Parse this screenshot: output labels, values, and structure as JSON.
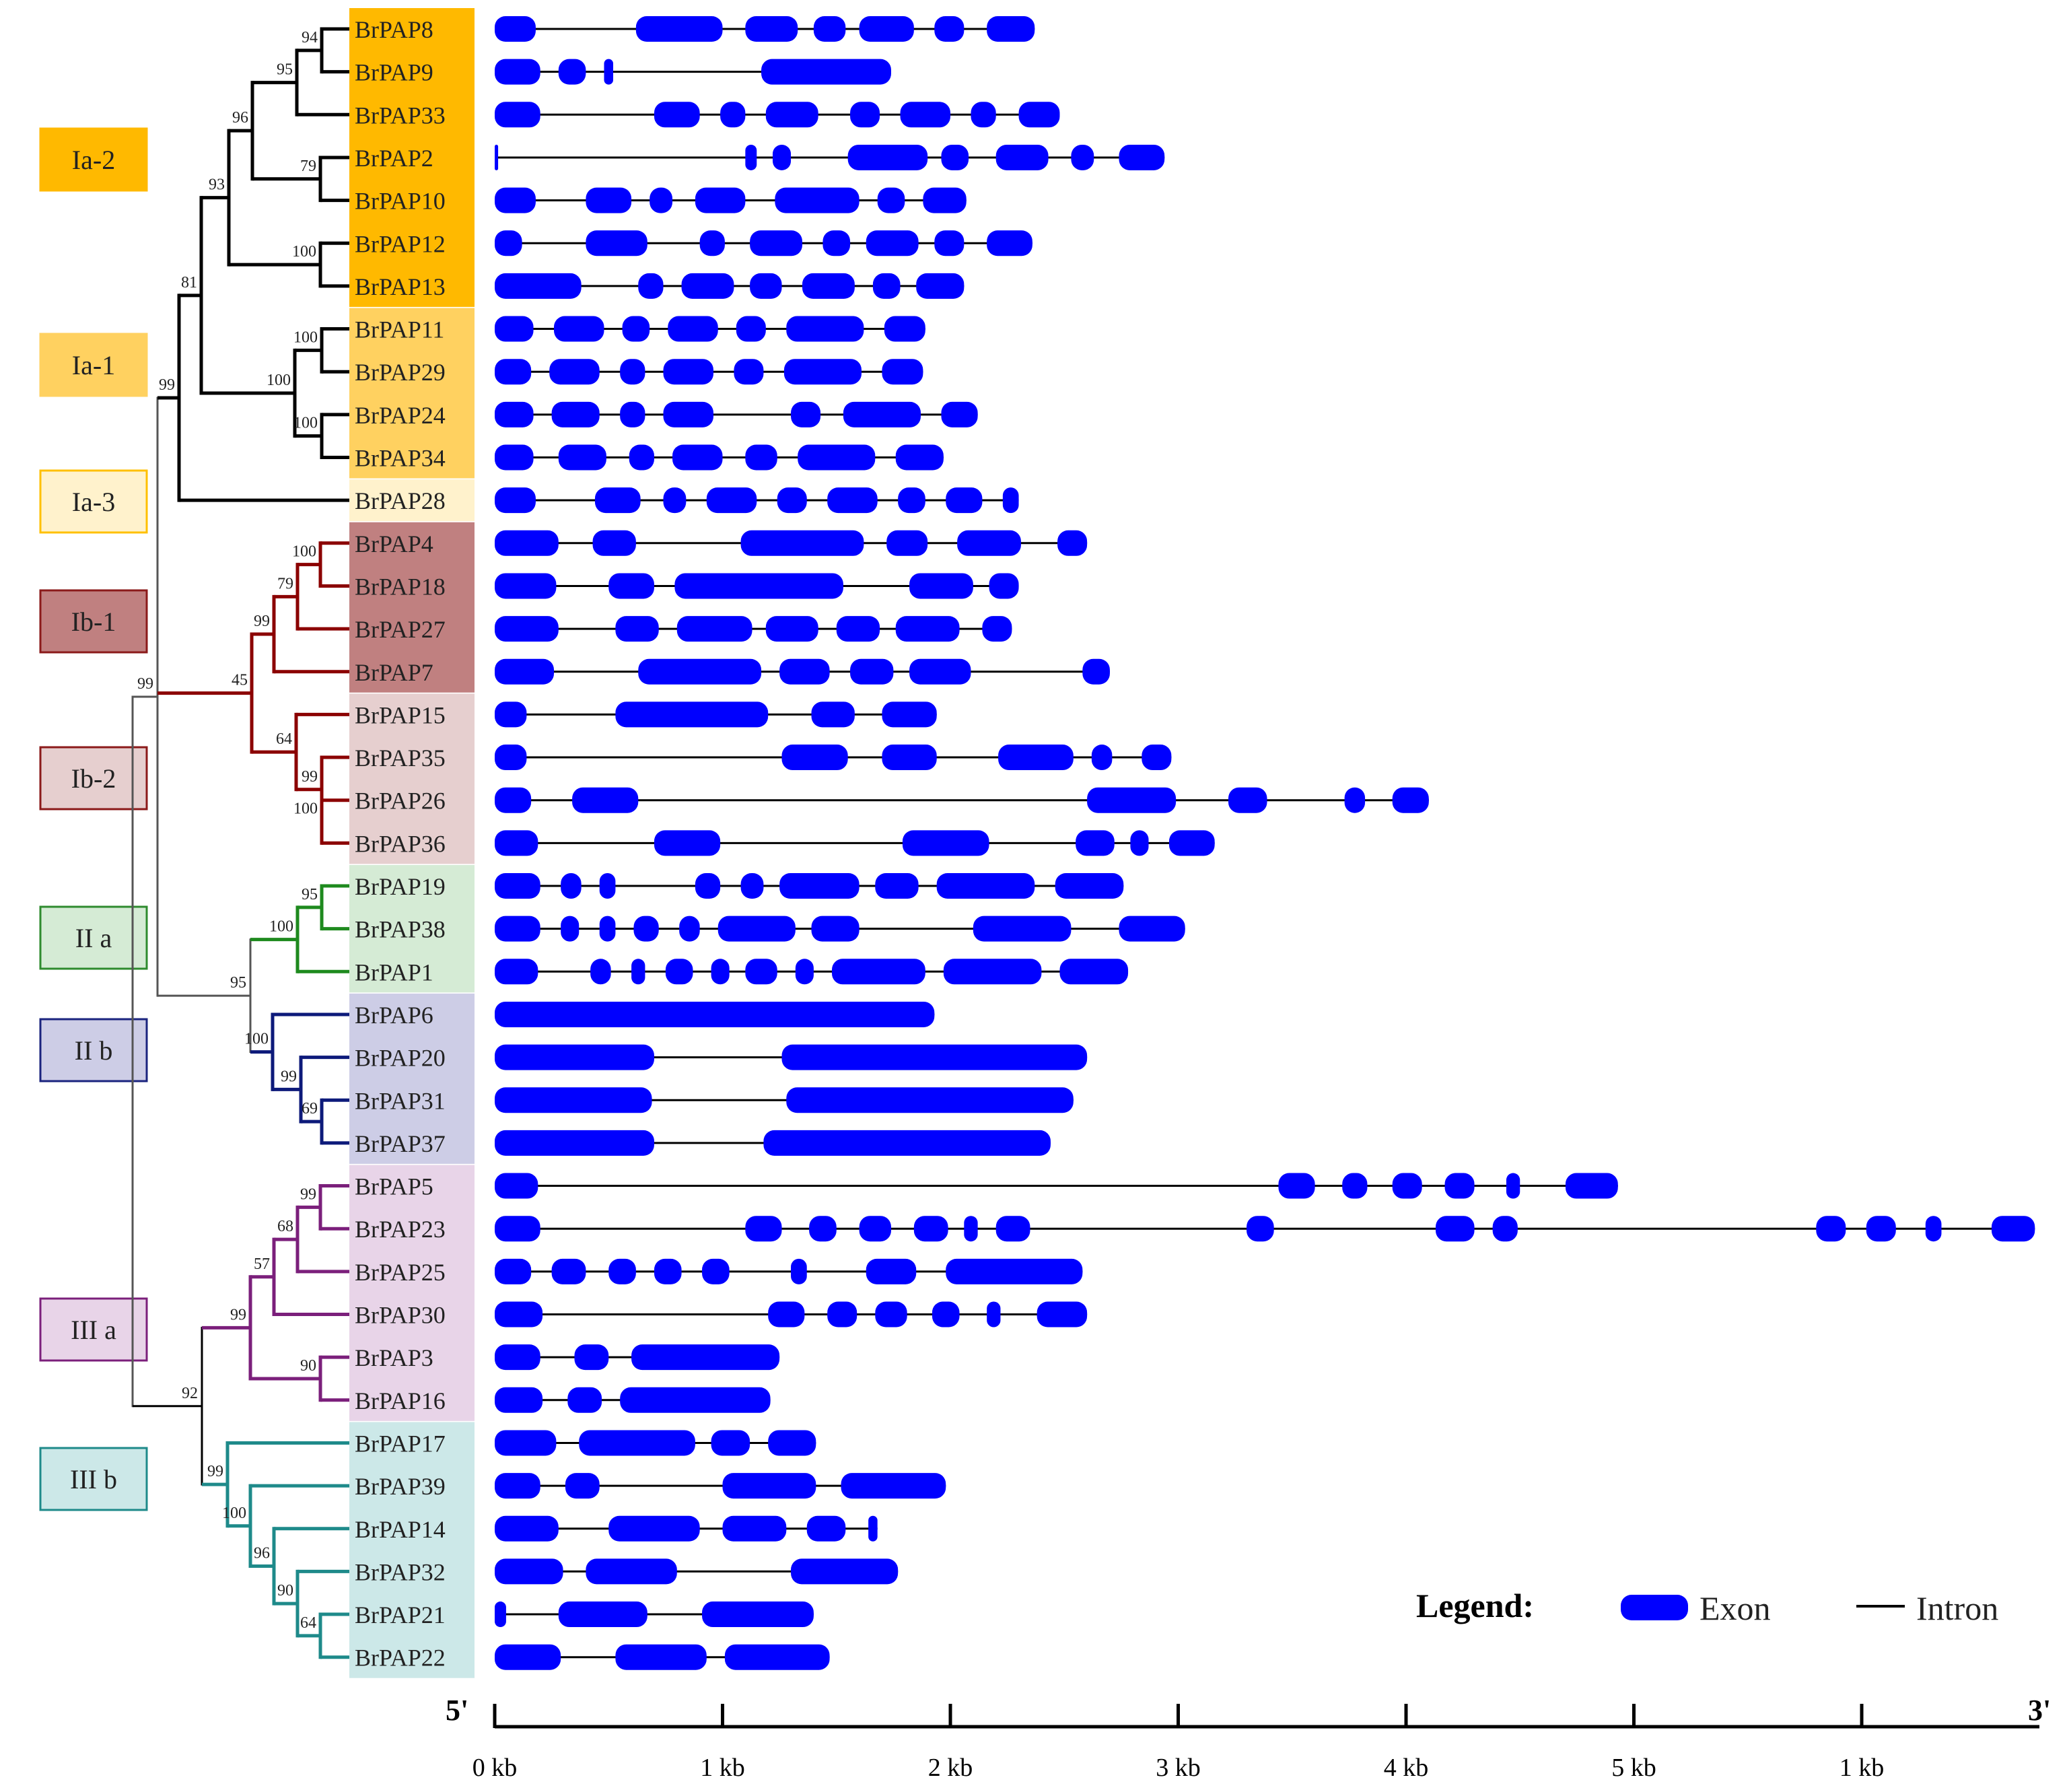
{
  "groups": [
    {
      "label": "Ia-2",
      "color": "#FFB900",
      "bg": "#FFB900",
      "genes": [
        "BrPAP8",
        "BrPAP9",
        "BrPAP33",
        "BrPAP2",
        "BrPAP10",
        "BrPAP12",
        "BrPAP13"
      ]
    },
    {
      "label": "Ia-1",
      "color": "#FFD160",
      "bg": "#FFD160",
      "genes": [
        "BrPAP11",
        "BrPAP29",
        "BrPAP24",
        "BrPAP34"
      ]
    },
    {
      "label": "Ia-3",
      "color": "#FFF2CC",
      "border": "#FFC000",
      "bg": "#FFF2CC",
      "genes": [
        "BrPAP28"
      ]
    },
    {
      "label": "Ib-1",
      "color": "#C08080",
      "border": "#8B1A1A",
      "bg": "#C08080",
      "genes": [
        "BrPAP4",
        "BrPAP18",
        "BrPAP27",
        "BrPAP7"
      ]
    },
    {
      "label": "Ib-2",
      "color": "#E6CFCF",
      "border": "#8B1A1A",
      "bg": "#E6CFCF",
      "genes": [
        "BrPAP15",
        "BrPAP35",
        "BrPAP26",
        "BrPAP36"
      ]
    },
    {
      "label": "II a",
      "color": "#D5EBD5",
      "border": "#2E8B2E",
      "bg": "#D5EBD5",
      "genes": [
        "BrPAP19",
        "BrPAP38",
        "BrPAP1"
      ]
    },
    {
      "label": "II b",
      "color": "#CDCDE6",
      "border": "#1A237E",
      "bg": "#CDCDE6",
      "genes": [
        "BrPAP6",
        "BrPAP20",
        "BrPAP31",
        "BrPAP37"
      ]
    },
    {
      "label": "III a",
      "color": "#E8D4E8",
      "border": "#7B1F7B",
      "bg": "#E8D4E8",
      "genes": [
        "BrPAP5",
        "BrPAP23",
        "BrPAP25",
        "BrPAP30",
        "BrPAP3",
        "BrPAP16"
      ]
    },
    {
      "label": "III b",
      "color": "#CCE8E8",
      "border": "#1E8A8A",
      "bg": "#CCE8E8",
      "genes": [
        "BrPAP17",
        "BrPAP39",
        "BrPAP14",
        "BrPAP32",
        "BrPAP21",
        "BrPAP22"
      ]
    }
  ],
  "bootstrap": [
    "94",
    "95",
    "96",
    "93",
    "79",
    "100",
    "81",
    "100",
    "100",
    "100",
    "99",
    "99",
    "100",
    "79",
    "99",
    "45",
    "64",
    "99",
    "100",
    "95",
    "100",
    "95",
    "100",
    "99",
    "69",
    "99",
    "68",
    "57",
    "99",
    "90",
    "92",
    "99",
    "100",
    "96",
    "90",
    "64"
  ],
  "genes": [
    {
      "name": "BrPAP8",
      "len": 2.37,
      "exons": [
        [
          0,
          0.18
        ],
        [
          0.62,
          1.0
        ],
        [
          1.1,
          1.33
        ],
        [
          1.4,
          1.54
        ],
        [
          1.6,
          1.84
        ],
        [
          1.93,
          2.06
        ],
        [
          2.16,
          2.37
        ]
      ]
    },
    {
      "name": "BrPAP9",
      "len": 1.74,
      "exons": [
        [
          0,
          0.2
        ],
        [
          0.28,
          0.4
        ],
        [
          0.48,
          0.52
        ],
        [
          1.17,
          1.74
        ]
      ]
    },
    {
      "name": "BrPAP33",
      "len": 2.48,
      "exons": [
        [
          0,
          0.2
        ],
        [
          0.7,
          0.9
        ],
        [
          0.99,
          1.1
        ],
        [
          1.19,
          1.42
        ],
        [
          1.56,
          1.69
        ],
        [
          1.78,
          2.0
        ],
        [
          2.09,
          2.2
        ],
        [
          2.3,
          2.48
        ]
      ]
    },
    {
      "name": "BrPAP2",
      "len": 2.94,
      "exons": [
        [
          0,
          0.015
        ],
        [
          1.1,
          1.15
        ],
        [
          1.22,
          1.3
        ],
        [
          1.55,
          1.9
        ],
        [
          1.96,
          2.08
        ],
        [
          2.2,
          2.43
        ],
        [
          2.53,
          2.63
        ],
        [
          2.74,
          2.94
        ]
      ]
    },
    {
      "name": "BrPAP10",
      "len": 2.07,
      "exons": [
        [
          0,
          0.18
        ],
        [
          0.4,
          0.6
        ],
        [
          0.68,
          0.78
        ],
        [
          0.88,
          1.1
        ],
        [
          1.23,
          1.6
        ],
        [
          1.68,
          1.8
        ],
        [
          1.88,
          2.07
        ]
      ]
    },
    {
      "name": "BrPAP12",
      "len": 2.36,
      "exons": [
        [
          0,
          0.12
        ],
        [
          0.4,
          0.67
        ],
        [
          0.9,
          1.01
        ],
        [
          1.12,
          1.35
        ],
        [
          1.44,
          1.56
        ],
        [
          1.63,
          1.86
        ],
        [
          1.93,
          2.06
        ],
        [
          2.16,
          2.36
        ]
      ]
    },
    {
      "name": "BrPAP13",
      "len": 2.06,
      "exons": [
        [
          0,
          0.38
        ],
        [
          0.63,
          0.74
        ],
        [
          0.82,
          1.05
        ],
        [
          1.12,
          1.26
        ],
        [
          1.35,
          1.58
        ],
        [
          1.66,
          1.78
        ],
        [
          1.85,
          2.06
        ]
      ]
    },
    {
      "name": "BrPAP11",
      "len": 1.89,
      "exons": [
        [
          0,
          0.17
        ],
        [
          0.26,
          0.48
        ],
        [
          0.56,
          0.68
        ],
        [
          0.76,
          0.98
        ],
        [
          1.06,
          1.19
        ],
        [
          1.28,
          1.62
        ],
        [
          1.71,
          1.89
        ]
      ]
    },
    {
      "name": "BrPAP29",
      "len": 1.88,
      "exons": [
        [
          0,
          0.16
        ],
        [
          0.24,
          0.46
        ],
        [
          0.55,
          0.66
        ],
        [
          0.74,
          0.96
        ],
        [
          1.05,
          1.18
        ],
        [
          1.27,
          1.61
        ],
        [
          1.7,
          1.88
        ]
      ]
    },
    {
      "name": "BrPAP24",
      "len": 2.12,
      "exons": [
        [
          0,
          0.17
        ],
        [
          0.25,
          0.46
        ],
        [
          0.55,
          0.66
        ],
        [
          0.74,
          0.96
        ],
        [
          1.3,
          1.43
        ],
        [
          1.53,
          1.87
        ],
        [
          1.96,
          2.12
        ]
      ]
    },
    {
      "name": "BrPAP34",
      "len": 1.97,
      "exons": [
        [
          0,
          0.17
        ],
        [
          0.28,
          0.49
        ],
        [
          0.59,
          0.7
        ],
        [
          0.78,
          1.0
        ],
        [
          1.1,
          1.24
        ],
        [
          1.33,
          1.67
        ],
        [
          1.76,
          1.97
        ]
      ]
    },
    {
      "name": "BrPAP28",
      "len": 2.3,
      "exons": [
        [
          0,
          0.18
        ],
        [
          0.44,
          0.64
        ],
        [
          0.74,
          0.84
        ],
        [
          0.93,
          1.15
        ],
        [
          1.24,
          1.37
        ],
        [
          1.46,
          1.68
        ],
        [
          1.77,
          1.89
        ],
        [
          1.98,
          2.14
        ],
        [
          2.23,
          2.3
        ]
      ]
    },
    {
      "name": "BrPAP4",
      "len": 2.6,
      "exons": [
        [
          0,
          0.28
        ],
        [
          0.43,
          0.62
        ],
        [
          1.08,
          1.62
        ],
        [
          1.72,
          1.9
        ],
        [
          2.03,
          2.31
        ],
        [
          2.47,
          2.6
        ]
      ]
    },
    {
      "name": "BrPAP18",
      "len": 2.3,
      "exons": [
        [
          0,
          0.27
        ],
        [
          0.5,
          0.7
        ],
        [
          0.79,
          1.53
        ],
        [
          1.82,
          2.1
        ],
        [
          2.17,
          2.3
        ]
      ]
    },
    {
      "name": "BrPAP27",
      "len": 2.27,
      "exons": [
        [
          0,
          0.28
        ],
        [
          0.53,
          0.72
        ],
        [
          0.8,
          1.13
        ],
        [
          1.19,
          1.42
        ],
        [
          1.5,
          1.69
        ],
        [
          1.76,
          2.04
        ],
        [
          2.14,
          2.27
        ]
      ]
    },
    {
      "name": "BrPAP7",
      "len": 2.7,
      "exons": [
        [
          0,
          0.26
        ],
        [
          0.63,
          1.17
        ],
        [
          1.25,
          1.47
        ],
        [
          1.56,
          1.75
        ],
        [
          1.82,
          2.09
        ],
        [
          2.58,
          2.7
        ]
      ]
    },
    {
      "name": "BrPAP15",
      "len": 1.94,
      "exons": [
        [
          0,
          0.14
        ],
        [
          0.53,
          1.2
        ],
        [
          1.39,
          1.58
        ],
        [
          1.7,
          1.94
        ]
      ]
    },
    {
      "name": "BrPAP35",
      "len": 2.97,
      "exons": [
        [
          0,
          0.14
        ],
        [
          1.26,
          1.55
        ],
        [
          1.7,
          1.94
        ],
        [
          2.21,
          2.54
        ],
        [
          2.62,
          2.71
        ],
        [
          2.84,
          2.97
        ]
      ]
    },
    {
      "name": "BrPAP26",
      "len": 4.1,
      "exons": [
        [
          0,
          0.16
        ],
        [
          0.34,
          0.63
        ],
        [
          2.6,
          2.99
        ],
        [
          3.22,
          3.39
        ],
        [
          3.73,
          3.82
        ],
        [
          3.94,
          4.1
        ]
      ]
    },
    {
      "name": "BrPAP36",
      "len": 3.16,
      "exons": [
        [
          0,
          0.19
        ],
        [
          0.7,
          0.99
        ],
        [
          1.79,
          2.17
        ],
        [
          2.55,
          2.72
        ],
        [
          2.79,
          2.87
        ],
        [
          2.96,
          3.16
        ]
      ]
    },
    {
      "name": "BrPAP19",
      "len": 2.76,
      "exons": [
        [
          0,
          0.2
        ],
        [
          0.29,
          0.38
        ],
        [
          0.46,
          0.53
        ],
        [
          0.88,
          0.99
        ],
        [
          1.08,
          1.18
        ],
        [
          1.25,
          1.6
        ],
        [
          1.67,
          1.86
        ],
        [
          1.94,
          2.37
        ],
        [
          2.46,
          2.76
        ]
      ]
    },
    {
      "name": "BrPAP38",
      "len": 3.03,
      "exons": [
        [
          0,
          0.2
        ],
        [
          0.29,
          0.37
        ],
        [
          0.46,
          0.53
        ],
        [
          0.61,
          0.72
        ],
        [
          0.81,
          0.9
        ],
        [
          0.98,
          1.32
        ],
        [
          1.39,
          1.6
        ],
        [
          2.1,
          2.53
        ],
        [
          2.74,
          3.03
        ]
      ]
    },
    {
      "name": "BrPAP1",
      "len": 2.78,
      "exons": [
        [
          0,
          0.19
        ],
        [
          0.42,
          0.51
        ],
        [
          0.6,
          0.66
        ],
        [
          0.75,
          0.87
        ],
        [
          0.95,
          1.03
        ],
        [
          1.1,
          1.24
        ],
        [
          1.32,
          1.4
        ],
        [
          1.48,
          1.89
        ],
        [
          1.97,
          2.4
        ],
        [
          2.48,
          2.78
        ]
      ]
    },
    {
      "name": "BrPAP6",
      "len": 1.93,
      "exons": [
        [
          0,
          1.93
        ]
      ]
    },
    {
      "name": "BrPAP20",
      "len": 2.6,
      "exons": [
        [
          0,
          0.7
        ],
        [
          1.26,
          2.6
        ]
      ]
    },
    {
      "name": "BrPAP31",
      "len": 2.54,
      "exons": [
        [
          0,
          0.69
        ],
        [
          1.28,
          2.54
        ]
      ]
    },
    {
      "name": "BrPAP37",
      "len": 2.44,
      "exons": [
        [
          0,
          0.7
        ],
        [
          1.18,
          2.44
        ]
      ]
    },
    {
      "name": "BrPAP5",
      "len": 4.93,
      "exons": [
        [
          0,
          0.19
        ],
        [
          3.44,
          3.6
        ],
        [
          3.72,
          3.83
        ],
        [
          3.94,
          4.07
        ],
        [
          4.17,
          4.3
        ],
        [
          4.44,
          4.5
        ],
        [
          4.7,
          4.93
        ]
      ]
    },
    {
      "name": "BrPAP23",
      "len": 6.76,
      "exons": [
        [
          0,
          0.2
        ],
        [
          1.1,
          1.26
        ],
        [
          1.38,
          1.5
        ],
        [
          1.6,
          1.74
        ],
        [
          1.84,
          1.99
        ],
        [
          2.06,
          2.12
        ],
        [
          2.2,
          2.35
        ],
        [
          3.3,
          3.42
        ],
        [
          4.13,
          4.3
        ],
        [
          4.38,
          4.49
        ],
        [
          5.8,
          5.93
        ],
        [
          6.02,
          6.15
        ],
        [
          6.28,
          6.35
        ],
        [
          6.57,
          6.76
        ]
      ]
    },
    {
      "name": "BrPAP25",
      "len": 2.58,
      "exons": [
        [
          0,
          0.16
        ],
        [
          0.25,
          0.4
        ],
        [
          0.5,
          0.62
        ],
        [
          0.7,
          0.82
        ],
        [
          0.91,
          1.03
        ],
        [
          1.3,
          1.37
        ],
        [
          1.63,
          1.85
        ],
        [
          1.98,
          2.58
        ]
      ]
    },
    {
      "name": "BrPAP30",
      "len": 2.6,
      "exons": [
        [
          0,
          0.21
        ],
        [
          1.2,
          1.36
        ],
        [
          1.46,
          1.59
        ],
        [
          1.67,
          1.81
        ],
        [
          1.92,
          2.04
        ],
        [
          2.16,
          2.22
        ],
        [
          2.38,
          2.6
        ]
      ]
    },
    {
      "name": "BrPAP3",
      "len": 1.25,
      "exons": [
        [
          0,
          0.2
        ],
        [
          0.35,
          0.5
        ],
        [
          0.6,
          1.25
        ]
      ]
    },
    {
      "name": "BrPAP16",
      "len": 1.21,
      "exons": [
        [
          0,
          0.21
        ],
        [
          0.32,
          0.47
        ],
        [
          0.55,
          1.21
        ]
      ]
    },
    {
      "name": "BrPAP17",
      "len": 1.41,
      "exons": [
        [
          0,
          0.27
        ],
        [
          0.37,
          0.88
        ],
        [
          0.95,
          1.12
        ],
        [
          1.2,
          1.41
        ]
      ]
    },
    {
      "name": "BrPAP39",
      "len": 1.98,
      "exons": [
        [
          0,
          0.2
        ],
        [
          0.31,
          0.46
        ],
        [
          1.0,
          1.41
        ],
        [
          1.52,
          1.98
        ]
      ]
    },
    {
      "name": "BrPAP14",
      "len": 1.68,
      "exons": [
        [
          0,
          0.28
        ],
        [
          0.5,
          0.9
        ],
        [
          1.0,
          1.28
        ],
        [
          1.37,
          1.54
        ],
        [
          1.64,
          1.68
        ]
      ]
    },
    {
      "name": "BrPAP32",
      "len": 1.77,
      "exons": [
        [
          0,
          0.3
        ],
        [
          0.4,
          0.8
        ],
        [
          1.3,
          1.77
        ]
      ]
    },
    {
      "name": "BrPAP21",
      "len": 1.4,
      "exons": [
        [
          0,
          0.05
        ],
        [
          0.28,
          0.67
        ],
        [
          0.91,
          1.4
        ]
      ]
    },
    {
      "name": "BrPAP22",
      "len": 1.47,
      "exons": [
        [
          0,
          0.29
        ],
        [
          0.53,
          0.93
        ],
        [
          1.01,
          1.47
        ]
      ]
    }
  ],
  "axis": {
    "ticks": [
      "0 kb",
      "1 kb",
      "2 kb",
      "3 kb",
      "4 kb",
      "5 kb",
      "1 kb"
    ],
    "start_label": "5'",
    "end_label": "3'"
  },
  "legend": {
    "title": "Legend:",
    "exon": "Exon",
    "intron": "Intron",
    "exon_color": "#0000FF"
  }
}
